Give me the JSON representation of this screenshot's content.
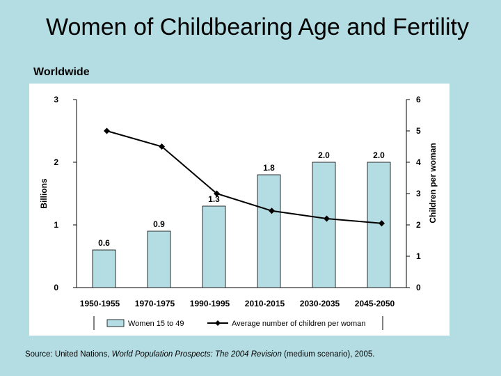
{
  "title": "Women of Childbearing Age and Fertility",
  "subtitle": "Worldwide",
  "source": {
    "prefix": "Source: United Nations, ",
    "publication": "World Population Prospects: The 2004 Revision",
    "suffix": " (medium scenario), 2005."
  },
  "colors": {
    "background": "#b3dde3",
    "bar_fill": "#b3dde3",
    "line": "#000000"
  },
  "chart_data": {
    "type": "bar",
    "categories": [
      "1950-1955",
      "1970-1975",
      "1990-1995",
      "2010-2015",
      "2030-2035",
      "2045-2050"
    ],
    "series": [
      {
        "name": "Women 15 to 49",
        "type": "bar",
        "axis": "left",
        "values": [
          0.6,
          0.9,
          1.3,
          1.8,
          2.0,
          2.0
        ],
        "data_labels": [
          "0.6",
          "0.9",
          "1.3",
          "1.8",
          "2.0",
          "2.0"
        ]
      },
      {
        "name": "Average number of children per woman",
        "type": "line",
        "axis": "right",
        "marker": "diamond",
        "values": [
          5.0,
          4.5,
          3.0,
          2.45,
          2.2,
          2.05
        ]
      }
    ],
    "ylabel": "Billions",
    "ylabel_right": "Children per woman",
    "ylim": [
      0,
      3
    ],
    "ylim_right": [
      0,
      6
    ],
    "yticks": [
      "0",
      "1",
      "2",
      "3"
    ],
    "yticks_right": [
      "0",
      "1",
      "2",
      "3",
      "4",
      "5",
      "6"
    ],
    "grid": false,
    "legend_position": "bottom"
  }
}
